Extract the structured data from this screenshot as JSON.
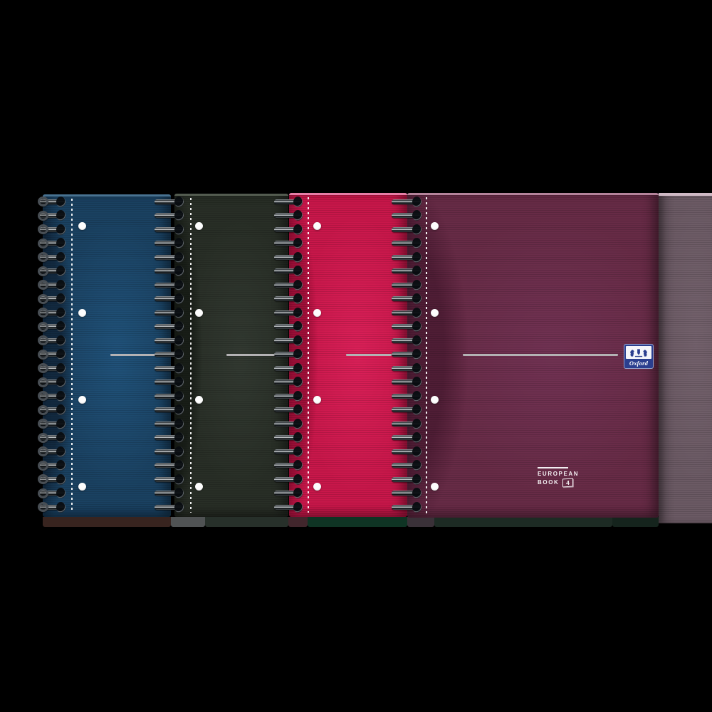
{
  "brand": {
    "logo_text": "Oxford",
    "label_line1": "EUROPEAN",
    "label_line2": "BOOK",
    "label_number": "4"
  },
  "colors": {
    "background": "#000000",
    "logo_blue": "#2b3f8f",
    "logo_panel": "#f4f5fa",
    "hole_white": "#fdfdfd",
    "wire_dark": "#16181b",
    "wire_highlight": "#e6e9eb",
    "accent_line_silver": "#ebe9eb",
    "perforation_white": "#ffffff",
    "label_white": "#f3eef1"
  },
  "notebooks": [
    {
      "name": "navy-blue",
      "base": "#1a4161",
      "hi": "#20527a",
      "shade": "#12293f",
      "top_edge": "#4b7696"
    },
    {
      "name": "black-green",
      "base": "#282e26",
      "hi": "#323931",
      "shade": "#181d17",
      "top_edge": "#565f53"
    },
    {
      "name": "raspberry-red",
      "base": "#c8174a",
      "hi": "#da2058",
      "shade": "#9e0f38",
      "top_edge": "#ec84ad"
    },
    {
      "name": "burgundy",
      "base": "#672b46",
      "hi": "#713253",
      "shade": "#4f1d35",
      "top_edge": "#bb89a0"
    },
    {
      "name": "grey-mauve-sliver",
      "base": "#6b5a64",
      "hi": "#73616c",
      "shade": "#5a4b54",
      "top_edge": "#d6c0cb"
    }
  ],
  "details": {
    "holes_per_cover": 4,
    "coils_per_binding": 23
  },
  "back_edge_segments": [
    "#38241f",
    "#505354",
    "#27302a",
    "#41262c",
    "#0f3424",
    "#3a3138",
    "#1d2b24",
    "#15241d"
  ]
}
